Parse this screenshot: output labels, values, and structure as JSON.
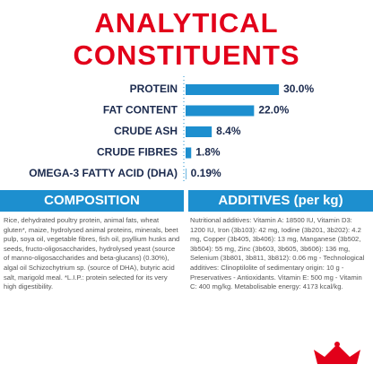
{
  "chart_data": {
    "type": "bar",
    "orientation": "horizontal",
    "title": "ANALYTICAL CONSTITUENTS",
    "categories": [
      "PROTEIN",
      "FAT CONTENT",
      "CRUDE ASH",
      "CRUDE FIBRES",
      "OMEGA-3 FATTY ACID (DHA)"
    ],
    "values": [
      30.0,
      22.0,
      8.4,
      1.8,
      0.19
    ],
    "value_labels": [
      "30.0%",
      "22.0%",
      "8.4%",
      "1.8%",
      "0.19%"
    ],
    "color": "#1d8fcf"
  },
  "composition": {
    "header": "COMPOSITION",
    "text": "Rice, dehydrated poultry protein, animal fats, wheat gluten*, maize, hydrolysed animal proteins, minerals, beet pulp, soya oil, vegetable fibres, fish oil, psyllium husks and seeds, fructo-oligosaccharides, hydrolysed yeast (source of manno-oligosaccharides and beta-glucans) (0.30%), algal oil Schizochytrium sp. (source of DHA), butyric acid salt, marigold meal. *L.I.P.: protein selected for its very high digestibility."
  },
  "additives": {
    "header": "ADDITIVES (per kg)",
    "text": "Nutritional additives: Vitamin A: 18500 IU, Vitamin D3: 1200 IU, Iron (3b103): 42 mg, Iodine (3b201, 3b202): 4.2 mg, Copper (3b405, 3b406): 13 mg, Manganese (3b502, 3b504): 55 mg, Zinc (3b603, 3b605, 3b606): 136 mg, Selenium (3b801, 3b811, 3b812): 0.06 mg - Technological additives: Clinoptilolite of sedimentary origin: 10 g - Preservatives - Antioxidants. Vitamin E: 500 mg - Vitamin C: 400 mg/kg. Metabolisable energy: 4173 kcal/kg."
  }
}
